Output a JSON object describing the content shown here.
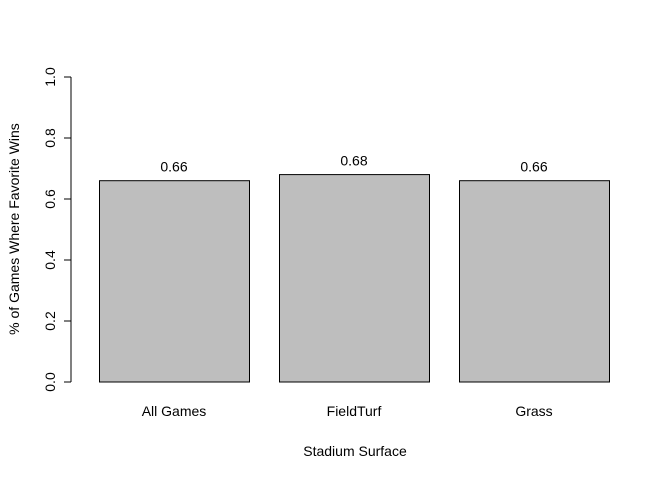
{
  "chart_data": {
    "type": "bar",
    "title": "",
    "xlabel": "Stadium Surface",
    "ylabel": "% of Games Where Favorite Wins",
    "categories": [
      "All Games",
      "FieldTurf",
      "Grass"
    ],
    "values": [
      0.66,
      0.68,
      0.66
    ],
    "data_labels": [
      "0.66",
      "0.68",
      "0.66"
    ],
    "ylim": [
      0,
      1
    ],
    "yticks": [
      0.0,
      0.2,
      0.4,
      0.6,
      0.8,
      1.0
    ],
    "ytick_labels": [
      "0.0",
      "0.2",
      "0.4",
      "0.6",
      "0.8",
      "1.0"
    ],
    "bar_color": "#bebebe",
    "bar_border_color": "#000000",
    "grid": false,
    "legend": "none"
  }
}
